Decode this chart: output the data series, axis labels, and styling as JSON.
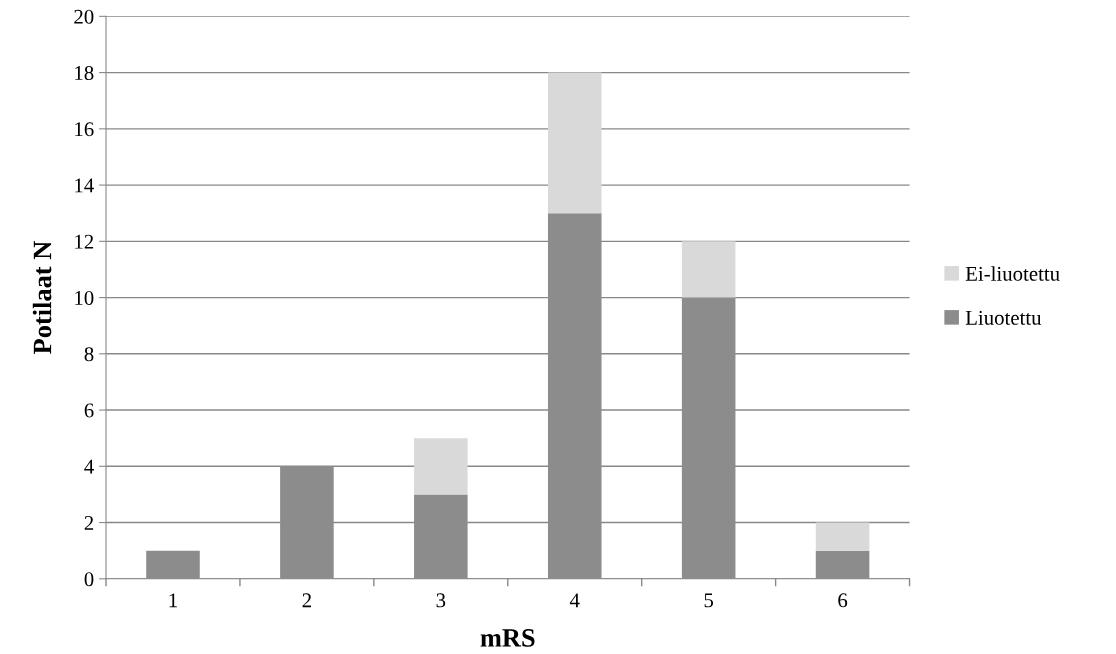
{
  "chart_data": {
    "type": "bar",
    "stacked": true,
    "xlabel": "mRS",
    "ylabel": "Potilaat N",
    "categories": [
      "1",
      "2",
      "3",
      "4",
      "5",
      "6"
    ],
    "series": [
      {
        "name": "Liuotettu",
        "color": "#8c8c8c",
        "values": [
          1,
          4,
          3,
          13,
          10,
          1
        ]
      },
      {
        "name": "Ei-liuotettu",
        "color": "#d9d9d9",
        "values": [
          0,
          0,
          2,
          5,
          2,
          1
        ]
      }
    ],
    "ylim": [
      0,
      20
    ],
    "yticks": [
      0,
      2,
      4,
      6,
      8,
      10,
      12,
      14,
      16,
      18,
      20
    ],
    "grid": "y",
    "legend": "right"
  }
}
